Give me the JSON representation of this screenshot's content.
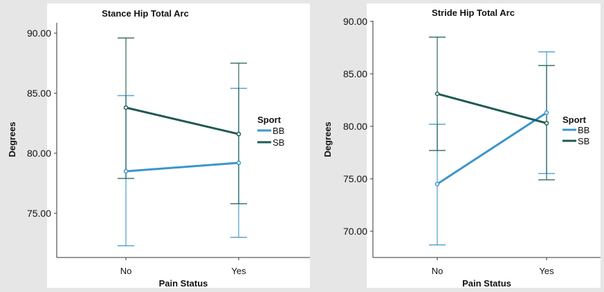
{
  "colors": {
    "BB": "#3a95cc",
    "SB": "#1f5a52",
    "panel": "#ffffff",
    "background": "#e6e6e6"
  },
  "chart_data": [
    {
      "type": "line",
      "title": "Stance Hip Total Arc",
      "xlabel": "Pain Status",
      "ylabel": "Degrees",
      "categories": [
        "No",
        "Yes"
      ],
      "ylim": [
        71.3,
        91.4
      ],
      "yticks": [
        75,
        80,
        85,
        90
      ],
      "ytick_labels": [
        "75.00",
        "80.00",
        "85.00",
        "90.00"
      ],
      "legend_title": "Sport",
      "legend_position": "right",
      "grid": false,
      "series": [
        {
          "name": "BB",
          "values": [
            78.5,
            79.2
          ],
          "error_low": [
            72.3,
            73.0
          ],
          "error_high": [
            84.8,
            85.4
          ]
        },
        {
          "name": "SB",
          "values": [
            83.8,
            81.6
          ],
          "error_low": [
            77.9,
            75.8
          ],
          "error_high": [
            89.6,
            87.5
          ]
        }
      ]
    },
    {
      "type": "line",
      "title": "Stride Hip Total Arc",
      "xlabel": "Pain Status",
      "ylabel": "Degrees",
      "categories": [
        "No",
        "Yes"
      ],
      "ylim": [
        67.7,
        91.6
      ],
      "yticks": [
        70,
        75,
        80,
        85,
        90
      ],
      "ytick_labels": [
        "70.00",
        "75.00",
        "80.00",
        "85.00",
        "90.00"
      ],
      "legend_title": "Sport",
      "legend_position": "right",
      "grid": false,
      "series": [
        {
          "name": "BB",
          "values": [
            74.5,
            81.3
          ],
          "error_low": [
            68.7,
            75.5
          ],
          "error_high": [
            80.2,
            87.1
          ]
        },
        {
          "name": "SB",
          "values": [
            83.1,
            80.3
          ],
          "error_low": [
            77.7,
            74.9
          ],
          "error_high": [
            88.5,
            85.8
          ]
        }
      ]
    }
  ]
}
